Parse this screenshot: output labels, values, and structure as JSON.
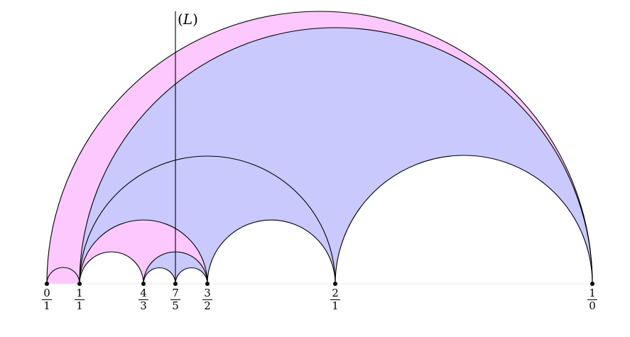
{
  "line": {
    "open": "(",
    "name": "L",
    "close": ")"
  },
  "points": [
    {
      "num": "0",
      "den": "1"
    },
    {
      "num": "1",
      "den": "1"
    },
    {
      "num": "4",
      "den": "3"
    },
    {
      "num": "7",
      "den": "5"
    },
    {
      "num": "3",
      "den": "2"
    },
    {
      "num": "2",
      "den": "1"
    },
    {
      "num": "1",
      "den": "0"
    }
  ],
  "colors": {
    "pink": "#fdc8fd",
    "blue": "#c9c9fd",
    "stroke": "#000000"
  }
}
